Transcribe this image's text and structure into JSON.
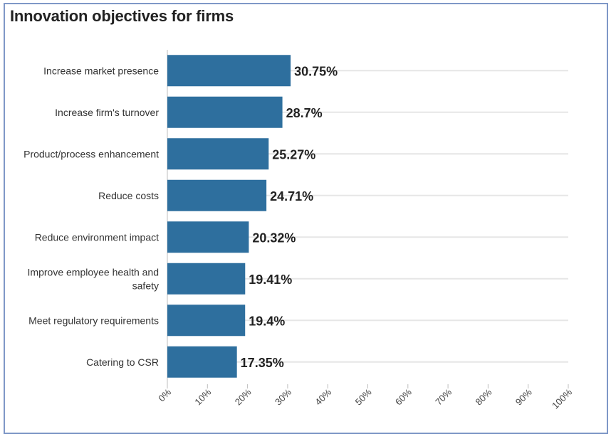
{
  "chart_data": {
    "type": "bar",
    "orientation": "horizontal",
    "title": "Innovation objectives for firms",
    "categories": [
      "Increase market presence",
      "Increase firm's turnover",
      "Product/process enhancement",
      "Reduce costs",
      "Reduce environment impact",
      "Improve employee health and safety",
      "Meet regulatory requirements",
      "Catering to CSR"
    ],
    "category_lines": [
      [
        "Increase market presence"
      ],
      [
        "Increase firm's turnover"
      ],
      [
        "Product/process enhancement"
      ],
      [
        "Reduce costs"
      ],
      [
        "Reduce environment impact"
      ],
      [
        "Improve employee health and",
        "safety"
      ],
      [
        "Meet regulatory requirements"
      ],
      [
        "Catering to CSR"
      ]
    ],
    "values": [
      30.75,
      28.7,
      25.27,
      24.71,
      20.32,
      19.41,
      19.4,
      17.35
    ],
    "value_labels": [
      "30.75%",
      "28.7%",
      "25.27%",
      "24.71%",
      "20.32%",
      "19.41%",
      "19.4%",
      "17.35%"
    ],
    "xlim": [
      0,
      100
    ],
    "xticks": [
      0,
      10,
      20,
      30,
      40,
      50,
      60,
      70,
      80,
      90,
      100
    ],
    "xtick_labels": [
      "0%",
      "10%",
      "20%",
      "30%",
      "40%",
      "50%",
      "60%",
      "70%",
      "80%",
      "90%",
      "100%"
    ],
    "xlabel": "",
    "ylabel": "",
    "grid": true,
    "legend": "none",
    "colors": {
      "bar": "#2e6f9e",
      "grid": "#e6e6e6",
      "border": "#7f98c7"
    }
  }
}
